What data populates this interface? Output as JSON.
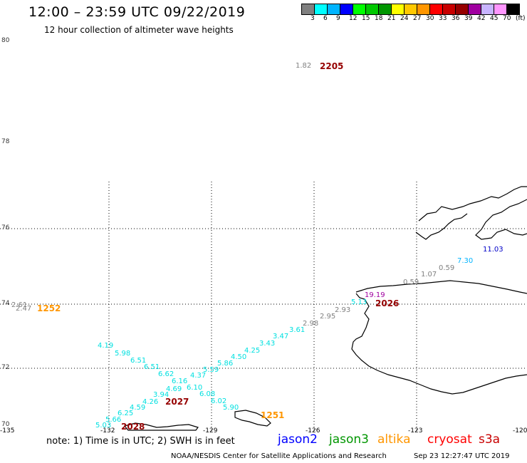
{
  "header": {
    "title": "12:00 – 23:59 UTC 09/22/2019",
    "subtitle": "12 hour collection of altimeter wave heights"
  },
  "scale": {
    "colors": [
      "#808080",
      "#00ffff",
      "#00b4ff",
      "#0000ff",
      "#00ff00",
      "#00c800",
      "#009600",
      "#ffff00",
      "#ffc800",
      "#ff9600",
      "#ff0000",
      "#c80000",
      "#960000",
      "#a000a0",
      "#c8b4ff",
      "#ff96ff",
      "#000000"
    ],
    "ticks": [
      "3",
      "6",
      "9",
      "12",
      "15",
      "18",
      "21",
      "24",
      "27",
      "30",
      "33",
      "36",
      "39",
      "42",
      "45",
      "70",
      "(ft)"
    ]
  },
  "axes": {
    "lat": [
      "80",
      "78",
      "76",
      "74",
      "72",
      "70"
    ],
    "lon": [
      "-135",
      "-132",
      "-129",
      "-126",
      "-123",
      "-120"
    ]
  },
  "map": {
    "labels": [
      {
        "t": "1.82",
        "c": "#808080"
      },
      {
        "t": "2205",
        "c": "#960000",
        "time": true
      },
      {
        "t": "11.03",
        "c": "#0000c8"
      },
      {
        "t": "7.30",
        "c": "#00b4ff"
      },
      {
        "t": "0.59",
        "c": "#808080"
      },
      {
        "t": "1.07",
        "c": "#808080"
      },
      {
        "t": "0.59",
        "c": "#808080"
      },
      {
        "t": "19.19",
        "c": "#a000a0"
      },
      {
        "t": "5.13",
        "c": "#00e0e0"
      },
      {
        "t": "2026",
        "c": "#960000",
        "time": true
      },
      {
        "t": "2.93",
        "c": "#808080"
      },
      {
        "t": "2.95",
        "c": "#808080"
      },
      {
        "t": "2.98",
        "c": "#808080"
      },
      {
        "t": "3.61",
        "c": "#00e0e0"
      },
      {
        "t": "3.47",
        "c": "#00e0e0"
      },
      {
        "t": "3.43",
        "c": "#00e0e0"
      },
      {
        "t": "4.25",
        "c": "#00e0e0"
      },
      {
        "t": "4.50",
        "c": "#00e0e0"
      },
      {
        "t": "5.86",
        "c": "#00e0e0"
      },
      {
        "t": "5.59",
        "c": "#00e0e0"
      },
      {
        "t": "4.37",
        "c": "#00e0e0"
      },
      {
        "t": "4.69",
        "c": "#00e0e0"
      },
      {
        "t": "3.94",
        "c": "#00e0e0"
      },
      {
        "t": "2027",
        "c": "#960000",
        "time": true
      },
      {
        "t": "4.26",
        "c": "#00e0e0"
      },
      {
        "t": "4.59",
        "c": "#00e0e0"
      },
      {
        "t": "6.25",
        "c": "#00e0e0"
      },
      {
        "t": "5.66",
        "c": "#00e0e0"
      },
      {
        "t": "5.03",
        "c": "#00e0e0"
      },
      {
        "t": "2028",
        "c": "#960000",
        "time": true
      },
      {
        "t": "4.19",
        "c": "#00e0e0"
      },
      {
        "t": "5.98",
        "c": "#00e0e0"
      },
      {
        "t": "6.51",
        "c": "#00e0e0"
      },
      {
        "t": "6.51",
        "c": "#00e0e0"
      },
      {
        "t": "6.62",
        "c": "#00e0e0"
      },
      {
        "t": "6.16",
        "c": "#00e0e0"
      },
      {
        "t": "6.10",
        "c": "#00e0e0"
      },
      {
        "t": "6.08",
        "c": "#00e0e0"
      },
      {
        "t": "6.02",
        "c": "#00e0e0"
      },
      {
        "t": "5.90",
        "c": "#00e0e0"
      },
      {
        "t": "2.47",
        "c": "#808080"
      },
      {
        "t": "2.61",
        "c": "#808080"
      },
      {
        "t": "1252",
        "c": "#ff9600",
        "time": true
      },
      {
        "t": "1251",
        "c": "#ff9600",
        "time": true
      }
    ]
  },
  "footer": {
    "note": "note: 1) Time is in UTC; 2) SWH is in feet",
    "sats": [
      {
        "name": "jason2",
        "color": "#0000ff"
      },
      {
        "name": "jason3",
        "color": "#009600"
      },
      {
        "name": "altika",
        "color": "#ff9600"
      },
      {
        "name": "cryosat",
        "color": "#ff0000"
      },
      {
        "name": "s3a",
        "color": "#c80000"
      }
    ],
    "credit": "NOAA/NESDIS Center for Satellite Applications and Research",
    "timestamp": "Sep 23 12:27:47 UTC 2019"
  }
}
